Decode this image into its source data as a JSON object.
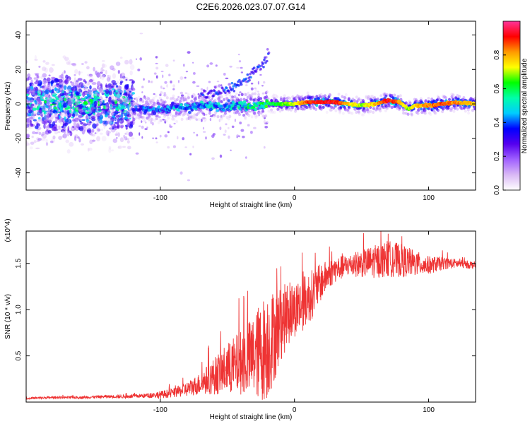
{
  "title": "C2E6.2026.023.07.07.G14",
  "chart_data": [
    {
      "type": "heatmap",
      "xlabel": "Height of straight line (km)",
      "ylabel": "Frequency (Hz)",
      "xlim": [
        -200,
        135
      ],
      "ylim": [
        -50,
        48
      ],
      "xticks": [
        -100,
        0,
        100
      ],
      "xtick_labels": [
        "-100",
        "0",
        "100"
      ],
      "yticks": [
        -40,
        -20,
        0,
        20,
        40
      ],
      "ytick_labels": [
        "-40",
        "-20",
        "0",
        "20",
        "40"
      ],
      "colorbar": {
        "label": "Normalized spectral amplitude",
        "range": [
          0,
          1
        ],
        "ticks": [
          0,
          0.2,
          0.4,
          0.6,
          0.8
        ],
        "tick_labels": [
          "0.0",
          "0.2",
          "0.4",
          "0.6",
          "0.8"
        ],
        "colors": [
          "#ffffff",
          "#d9b8f5",
          "#a060ff",
          "#5500ee",
          "#0000ff",
          "#00ccff",
          "#00ffaa",
          "#00ff00",
          "#ffff00",
          "#ff9900",
          "#ff0000",
          "#ff3399"
        ]
      },
      "ridge": {
        "x": [
          -120,
          -100,
          -80,
          -60,
          -40,
          -20,
          -10,
          0,
          10,
          20,
          30,
          40,
          50,
          60,
          70,
          78,
          85,
          90,
          100,
          110,
          120,
          135
        ],
        "y": [
          -3,
          -3,
          -2,
          -1,
          -1,
          0,
          0,
          0,
          1,
          1,
          1,
          0,
          -1,
          0,
          2,
          1,
          -3,
          -1,
          -1,
          0,
          1,
          0
        ],
        "amplitude": [
          0.35,
          0.4,
          0.45,
          0.45,
          0.5,
          0.6,
          0.65,
          0.75,
          0.9,
          0.95,
          0.95,
          0.8,
          0.7,
          0.8,
          0.95,
          0.85,
          0.7,
          0.8,
          0.85,
          0.9,
          0.85,
          0.8
        ]
      },
      "branch": {
        "x": [
          -70,
          -55,
          -45,
          -35,
          -28,
          -22,
          -19
        ],
        "y": [
          5,
          7,
          10,
          15,
          20,
          25,
          30
        ]
      }
    },
    {
      "type": "line",
      "xlabel": "Height of straight line (km)",
      "ylabel": "SNR (10 * v/v)",
      "scale_label": "(x10^4)",
      "xlim": [
        -200,
        135
      ],
      "ylim": [
        0,
        1.85
      ],
      "xticks": [
        -100,
        0,
        100
      ],
      "xtick_labels": [
        "-100",
        "0",
        "100"
      ],
      "yticks": [
        0.5,
        1.0,
        1.5
      ],
      "ytick_labels": [
        "0.5",
        "1.0",
        "1.5"
      ],
      "series": [
        {
          "name": "SNR",
          "color": "#ee3333",
          "x": [
            -200,
            -180,
            -160,
            -140,
            -125,
            -110,
            -100,
            -90,
            -80,
            -70,
            -60,
            -50,
            -40,
            -30,
            -25,
            -20,
            -15,
            -10,
            -5,
            0,
            5,
            10,
            15,
            20,
            25,
            30,
            40,
            50,
            60,
            70,
            80,
            90,
            100,
            110,
            120,
            135
          ],
          "y": [
            0.04,
            0.05,
            0.05,
            0.06,
            0.06,
            0.07,
            0.08,
            0.1,
            0.14,
            0.2,
            0.28,
            0.36,
            0.43,
            0.5,
            0.55,
            0.62,
            0.72,
            0.85,
            0.95,
            1.0,
            1.05,
            1.12,
            1.2,
            1.3,
            1.38,
            1.43,
            1.48,
            1.5,
            1.52,
            1.55,
            1.53,
            1.5,
            1.48,
            1.5,
            1.5,
            1.48
          ],
          "noise": [
            0.01,
            0.012,
            0.014,
            0.016,
            0.02,
            0.025,
            0.04,
            0.05,
            0.08,
            0.12,
            0.2,
            0.28,
            0.35,
            0.45,
            0.55,
            0.6,
            0.5,
            0.4,
            0.35,
            0.3,
            0.3,
            0.28,
            0.26,
            0.2,
            0.16,
            0.14,
            0.12,
            0.15,
            0.18,
            0.2,
            0.18,
            0.14,
            0.1,
            0.07,
            0.05,
            0.04
          ]
        }
      ]
    }
  ]
}
